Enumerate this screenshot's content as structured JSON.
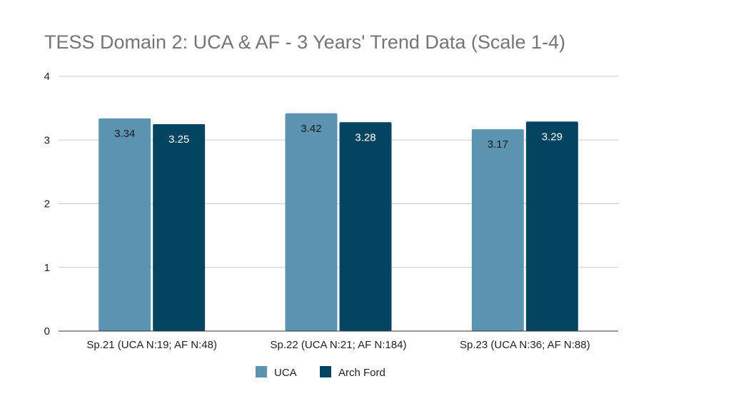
{
  "chart_data": {
    "type": "bar",
    "title": "TESS Domain 2: UCA & AF - 3 Years' Trend Data (Scale 1-4)",
    "categories": [
      "Sp.21 (UCA N:19; AF N:48)",
      "Sp.22 (UCA N:21; AF N:184)",
      "Sp.23 (UCA N:36; AF N:88)"
    ],
    "series": [
      {
        "name": "UCA",
        "color": "#5b93b1",
        "label_color": "#1a1a1a",
        "values": [
          3.34,
          3.42,
          3.17
        ]
      },
      {
        "name": "Arch Ford",
        "color": "#034460",
        "label_color": "#ffffff",
        "values": [
          3.25,
          3.28,
          3.29
        ]
      }
    ],
    "ylim": [
      0,
      4
    ],
    "yticks": [
      0,
      1,
      2,
      3,
      4
    ],
    "grid": true,
    "legend": "bottom",
    "xlabel": "",
    "ylabel": ""
  }
}
